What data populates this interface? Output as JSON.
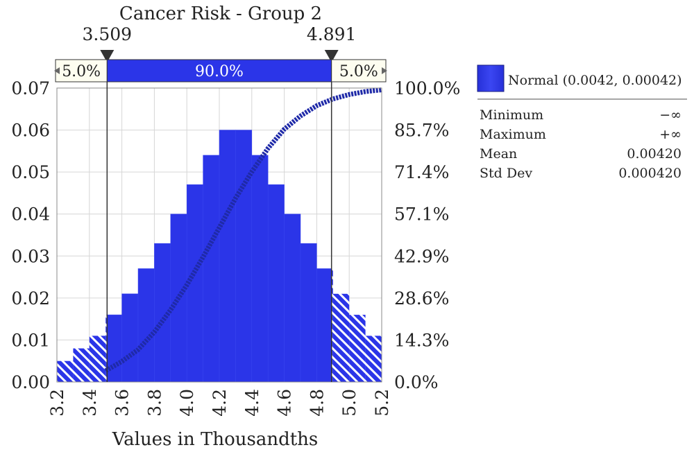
{
  "chart_data": {
    "type": "bar",
    "title": "Cancer Risk - Group 2",
    "xlabel": "Values in Thousandths",
    "ylabel": "",
    "x_ticks": [
      "3.2",
      "3.4",
      "3.6",
      "3.8",
      "4.0",
      "4.2",
      "4.4",
      "4.6",
      "4.8",
      "5.0",
      "5.2"
    ],
    "xlim": [
      3.2,
      5.2
    ],
    "ylim": [
      0,
      0.07
    ],
    "y_ticks": [
      "0.00",
      "0.01",
      "0.02",
      "0.03",
      "0.04",
      "0.05",
      "0.06",
      "0.07"
    ],
    "y2_ticks": [
      "0.0%",
      "14.3%",
      "28.6%",
      "42.9%",
      "57.1%",
      "71.4%",
      "85.7%",
      "100.0%"
    ],
    "bin_width": 0.1,
    "histogram": {
      "x_start": [
        3.2,
        3.3,
        3.4,
        3.5,
        3.6,
        3.7,
        3.8,
        3.9,
        4.0,
        4.1,
        4.2,
        4.3,
        4.4,
        4.5,
        4.6,
        4.7,
        4.8,
        4.9,
        5.0,
        5.1
      ],
      "values": [
        0.005,
        0.008,
        0.011,
        0.016,
        0.021,
        0.027,
        0.033,
        0.04,
        0.047,
        0.054,
        0.06,
        0.06,
        0.054,
        0.047,
        0.04,
        0.033,
        0.027,
        0.021,
        0.016,
        0.011
      ]
    },
    "cdf_series": {
      "name": "cumulative",
      "x": [
        3.5,
        3.6,
        3.7,
        3.8,
        3.9,
        4.0,
        4.1,
        4.2,
        4.3,
        4.4,
        4.5,
        4.6,
        4.7,
        4.8,
        4.9,
        5.0,
        5.1,
        5.2
      ],
      "y_percent": [
        3.8,
        7.0,
        11.0,
        17.0,
        24.5,
        33.0,
        42.5,
        52.5,
        62.5,
        71.5,
        79.5,
        86.0,
        90.5,
        94.0,
        96.3,
        97.8,
        98.8,
        99.4
      ]
    },
    "markers": [
      {
        "label": "3.509",
        "value": 3.509
      },
      {
        "label": "4.891",
        "value": 4.891
      }
    ],
    "percent_bar": [
      {
        "label": "5.0%",
        "value": 5.0
      },
      {
        "label": "90.0%",
        "value": 90.0
      },
      {
        "label": "5.0%",
        "value": 5.0
      }
    ],
    "legend": {
      "label": "Normal (0.0042, 0.00042)",
      "placement": "right",
      "color": "#2b35e8"
    },
    "stats": [
      {
        "label": "Minimum",
        "value": "−∞"
      },
      {
        "label": "Maximum",
        "value": "+∞"
      },
      {
        "label": "Mean",
        "value": "0.00420"
      },
      {
        "label": "Std Dev",
        "value": "0.000420"
      }
    ],
    "colors": {
      "bar": "#2b35e8",
      "bar_light": "#4a58f5",
      "cdf": "#1f2aa8",
      "grid": "#d6d6d6",
      "marker": "#333333"
    },
    "grid": true
  }
}
